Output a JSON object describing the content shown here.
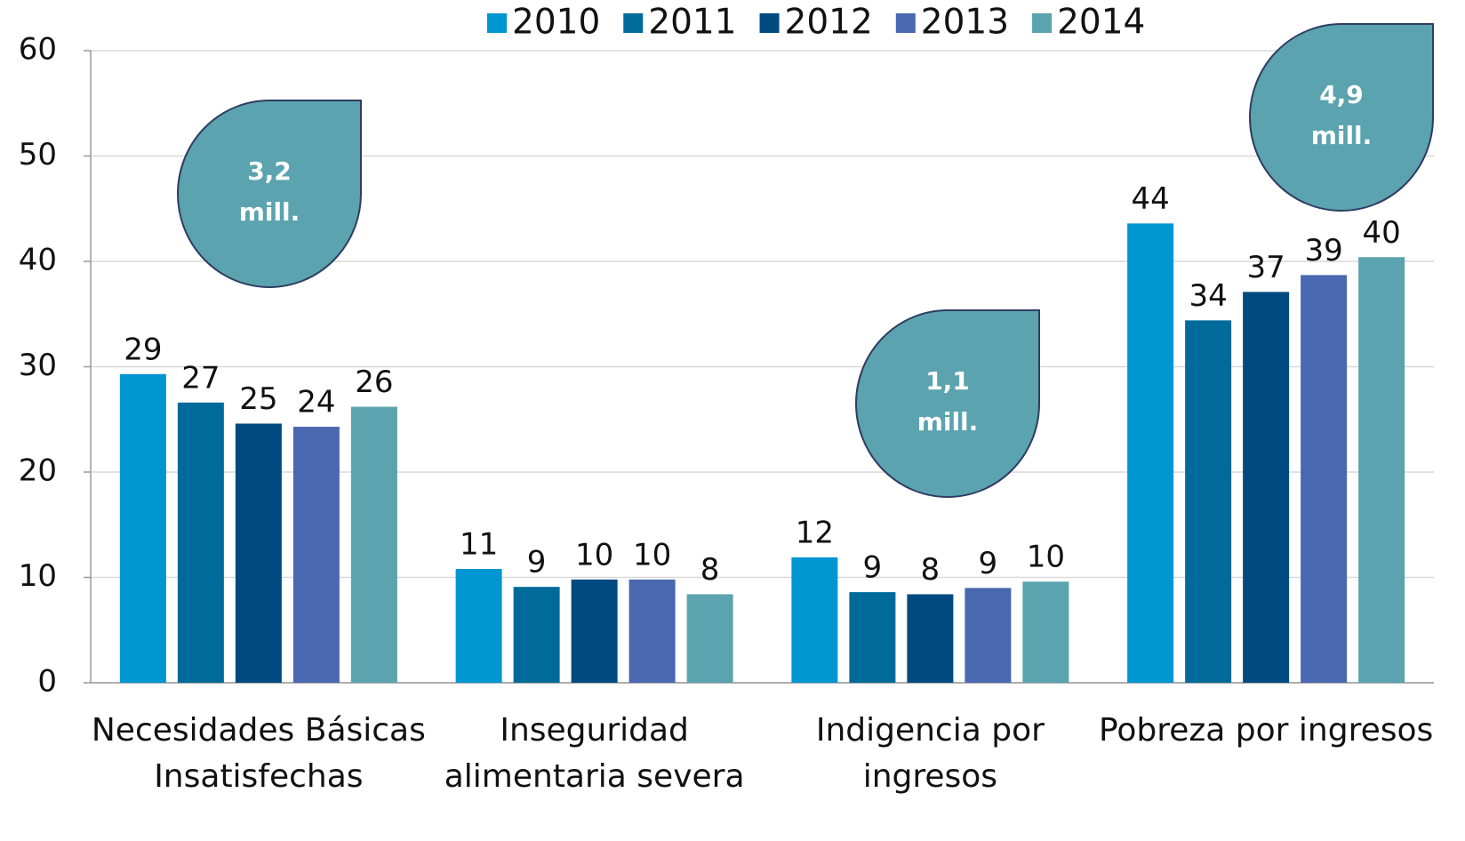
{
  "chart_data": {
    "type": "bar",
    "categories": [
      "Necesidades Básicas Insatisfechas",
      "Inseguridad alimentaria severa",
      "Indigencia por ingresos",
      "Pobreza por ingresos"
    ],
    "series": [
      {
        "name": "2010",
        "color": "#0096d2",
        "values": [
          29.3,
          10.8,
          11.9,
          43.6
        ],
        "value_labels": [
          "29",
          "11",
          "12",
          "44"
        ]
      },
      {
        "name": "2011",
        "color": "#006b9a",
        "values": [
          26.6,
          9.1,
          8.6,
          34.4
        ],
        "value_labels": [
          "27",
          "9",
          "9",
          "34"
        ]
      },
      {
        "name": "2012",
        "color": "#004a80",
        "values": [
          24.6,
          9.8,
          8.4,
          37.1
        ],
        "value_labels": [
          "25",
          "10",
          "8",
          "37"
        ]
      },
      {
        "name": "2013",
        "color": "#4a68b0",
        "values": [
          24.3,
          9.8,
          9.0,
          38.7
        ],
        "value_labels": [
          "24",
          "10",
          "9",
          "39"
        ]
      },
      {
        "name": "2014",
        "color": "#5ba3ae",
        "values": [
          26.2,
          8.4,
          9.6,
          40.4
        ],
        "value_labels": [
          "26",
          "8",
          "10",
          "40"
        ]
      }
    ],
    "ylim": [
      0,
      60
    ],
    "yticks": [
      0,
      10,
      20,
      30,
      40,
      50,
      60
    ],
    "grid": true,
    "legend": "top",
    "annotations": [
      {
        "lines": [
          "3,2",
          "mill."
        ]
      },
      {
        "lines": [
          "1,1",
          "mill."
        ]
      },
      {
        "lines": [
          "4,9",
          "mill."
        ]
      }
    ]
  }
}
